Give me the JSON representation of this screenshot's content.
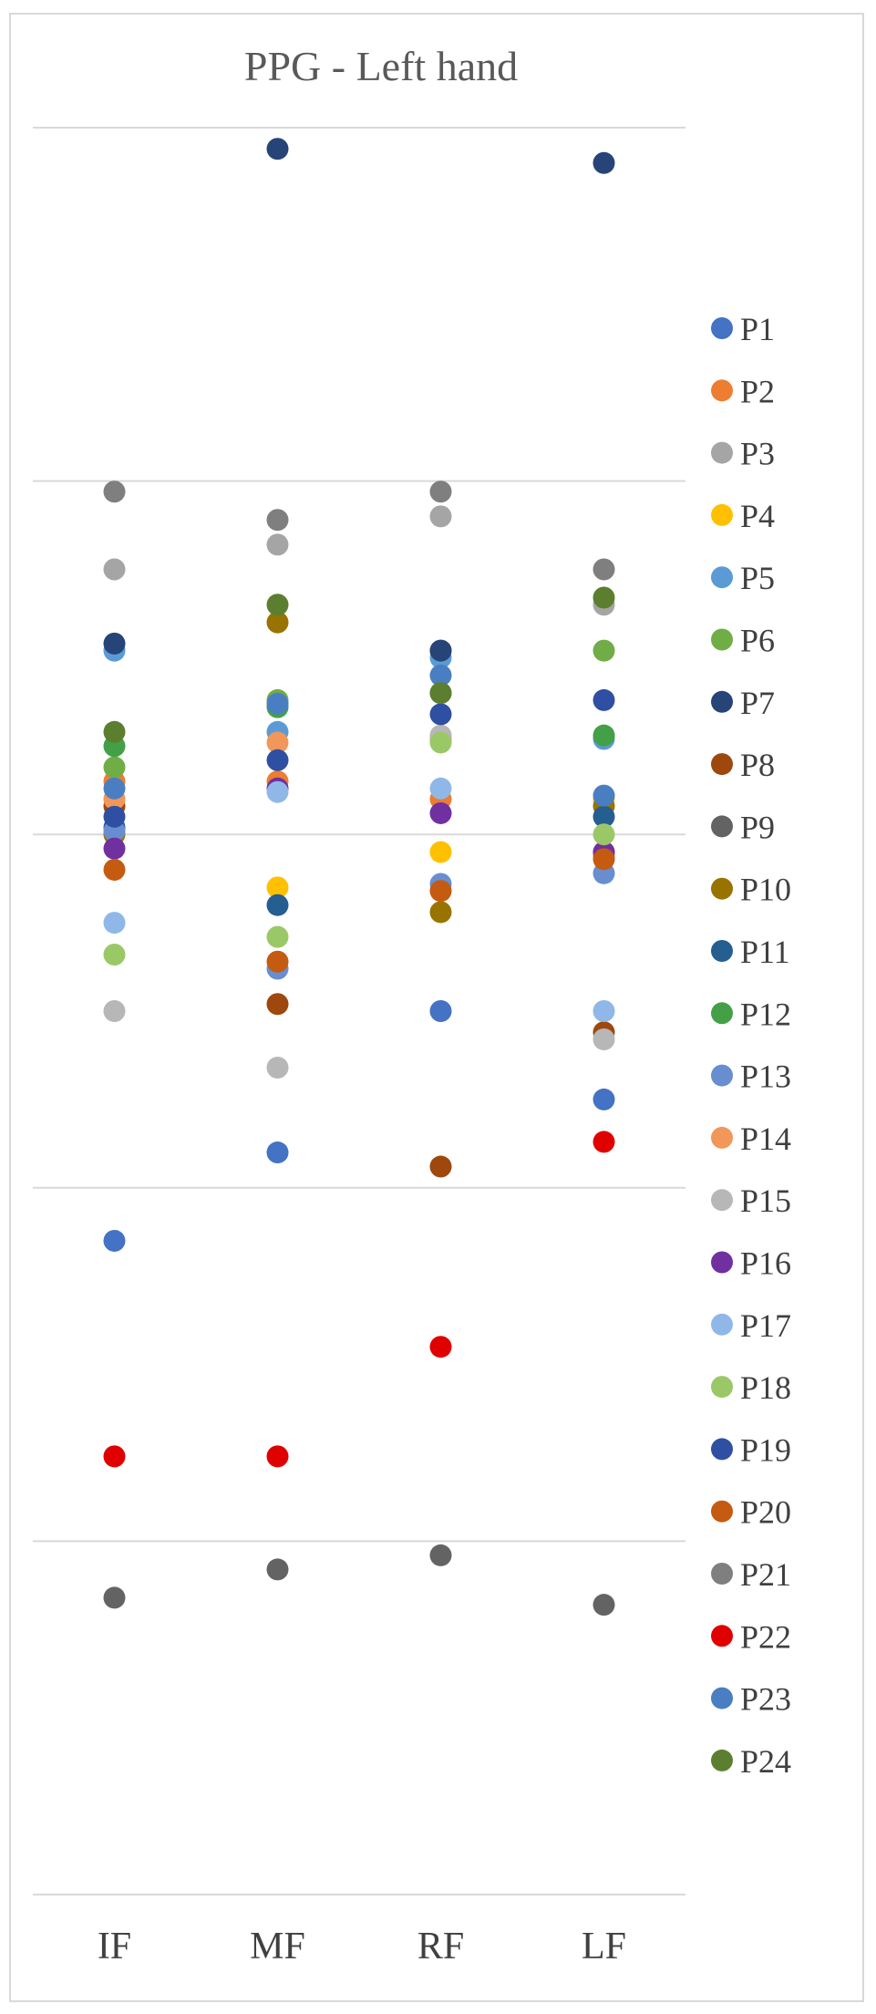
{
  "chart_data": {
    "type": "scatter",
    "title": "PPG - Left hand",
    "categories": [
      "IF",
      "MF",
      "RF",
      "LF"
    ],
    "ylim": [
      0,
      5
    ],
    "gridlines": [
      1,
      2,
      3,
      4,
      5
    ],
    "grid": true,
    "legend_position": "right",
    "series": [
      {
        "name": "P1",
        "color": "#4472C4",
        "values": [
          1.85,
          2.1,
          2.5,
          2.25
        ]
      },
      {
        "name": "P2",
        "color": "#ED7D31",
        "values": [
          3.15,
          3.15,
          3.1,
          2.94
        ]
      },
      {
        "name": "P3",
        "color": "#A5A5A5",
        "values": [
          3.75,
          3.82,
          3.9,
          3.65
        ]
      },
      {
        "name": "P4",
        "color": "#FFC000",
        "values": [
          3.1,
          2.85,
          2.95,
          3.1
        ]
      },
      {
        "name": "P5",
        "color": "#5B9BD5",
        "values": [
          3.52,
          3.29,
          3.5,
          3.27
        ]
      },
      {
        "name": "P6",
        "color": "#70AD47",
        "values": [
          3.19,
          3.38,
          3.52,
          3.52
        ]
      },
      {
        "name": "P7",
        "color": "#264478",
        "values": [
          3.54,
          4.94,
          3.52,
          4.9
        ]
      },
      {
        "name": "P8",
        "color": "#9E480E",
        "values": [
          3.08,
          2.52,
          2.06,
          2.44
        ]
      },
      {
        "name": "P9",
        "color": "#636363",
        "values": [
          0.84,
          0.92,
          0.96,
          0.82
        ]
      },
      {
        "name": "P10",
        "color": "#997300",
        "values": [
          3.0,
          3.6,
          2.78,
          3.08
        ]
      },
      {
        "name": "P11",
        "color": "#255E91",
        "values": [
          3.02,
          2.8,
          3.27,
          3.05
        ]
      },
      {
        "name": "P12",
        "color": "#43A047",
        "values": [
          3.25,
          3.36,
          3.4,
          3.28
        ]
      },
      {
        "name": "P13",
        "color": "#698ED0",
        "values": [
          3.01,
          2.62,
          2.86,
          2.89
        ]
      },
      {
        "name": "P14",
        "color": "#F1975A",
        "values": [
          3.1,
          3.26,
          3.27,
          2.95
        ]
      },
      {
        "name": "P15",
        "color": "#B7B7B7",
        "values": [
          2.5,
          2.34,
          3.28,
          2.42
        ]
      },
      {
        "name": "P16",
        "color": "#7030A0",
        "values": [
          2.96,
          3.13,
          3.06,
          2.95
        ]
      },
      {
        "name": "P17",
        "color": "#8FB8E8",
        "values": [
          2.75,
          3.12,
          3.13,
          2.5
        ]
      },
      {
        "name": "P18",
        "color": "#9BC867",
        "values": [
          2.66,
          2.71,
          3.26,
          3.0
        ]
      },
      {
        "name": "P19",
        "color": "#2F4FA2",
        "values": [
          3.05,
          3.21,
          3.34,
          3.38
        ]
      },
      {
        "name": "P20",
        "color": "#C55A11",
        "values": [
          2.9,
          2.64,
          2.84,
          2.93
        ]
      },
      {
        "name": "P21",
        "color": "#7F7F7F",
        "values": [
          3.97,
          3.89,
          3.97,
          3.75
        ]
      },
      {
        "name": "P22",
        "color": "#E00000",
        "values": [
          1.24,
          1.24,
          1.55,
          2.13
        ]
      },
      {
        "name": "P23",
        "color": "#4A7EC2",
        "values": [
          3.13,
          3.37,
          3.45,
          3.11
        ]
      },
      {
        "name": "P24",
        "color": "#5B7F2F",
        "values": [
          3.29,
          3.65,
          3.4,
          3.67
        ]
      }
    ]
  }
}
